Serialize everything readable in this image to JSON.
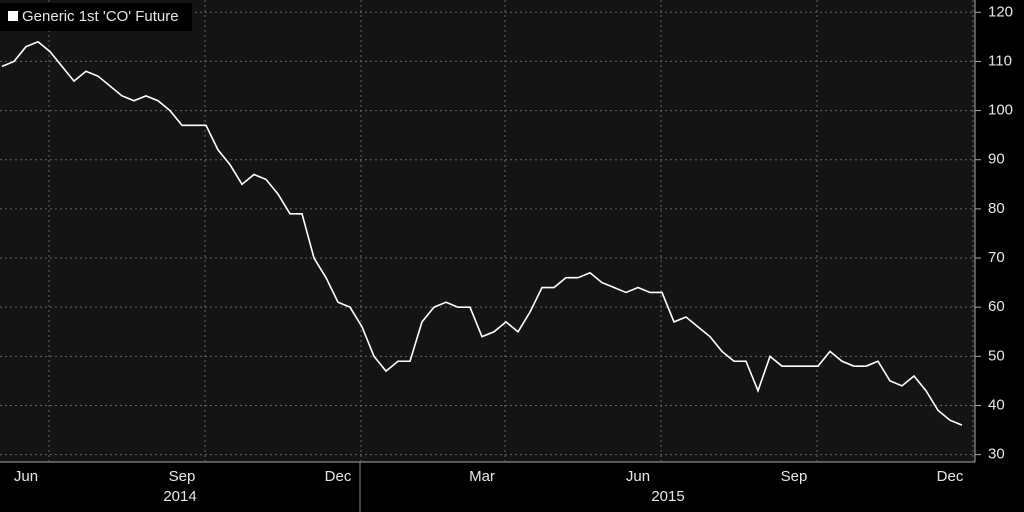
{
  "chart_data": {
    "type": "line",
    "categories": [
      null,
      null,
      "Jun",
      null,
      null,
      null,
      null,
      null,
      null,
      null,
      null,
      null,
      null,
      null,
      null,
      "Sep",
      null,
      null,
      null,
      null,
      null,
      null,
      null,
      null,
      null,
      null,
      null,
      null,
      "Dec",
      null,
      null,
      null,
      null,
      null,
      null,
      null,
      null,
      null,
      null,
      null,
      "Mar",
      null,
      null,
      null,
      null,
      null,
      null,
      null,
      null,
      null,
      null,
      null,
      null,
      "Jun",
      null,
      null,
      null,
      null,
      null,
      null,
      null,
      null,
      null,
      null,
      null,
      null,
      "Sep",
      null,
      null,
      null,
      null,
      null,
      null,
      null,
      null,
      null,
      null,
      null,
      null,
      "Dec",
      null
    ],
    "x_groups": [
      "2014",
      "2015"
    ],
    "series": [
      {
        "name": "Generic 1st 'CO' Future",
        "color": "#ffffff",
        "values": [
          109,
          110,
          113,
          114,
          112,
          109,
          106,
          108,
          107,
          105,
          103,
          102,
          103,
          102,
          100,
          97,
          97,
          97,
          92,
          89,
          85,
          87,
          86,
          83,
          79,
          79,
          70,
          66,
          61,
          60,
          56,
          50,
          47,
          49,
          49,
          57,
          60,
          61,
          60,
          60,
          54,
          55,
          57,
          55,
          59,
          64,
          64,
          66,
          66,
          67,
          65,
          64,
          63,
          64,
          63,
          63,
          57,
          58,
          56,
          54,
          51,
          49,
          49,
          43,
          50,
          48,
          48,
          48,
          48,
          51,
          49,
          48,
          48,
          49,
          45,
          44,
          46,
          43,
          39,
          37,
          36
        ]
      }
    ],
    "ylim": [
      28.5,
      122.5
    ],
    "yticks": [
      30,
      40,
      50,
      60,
      70,
      80,
      90,
      100,
      110,
      120
    ],
    "grid": true
  }
}
